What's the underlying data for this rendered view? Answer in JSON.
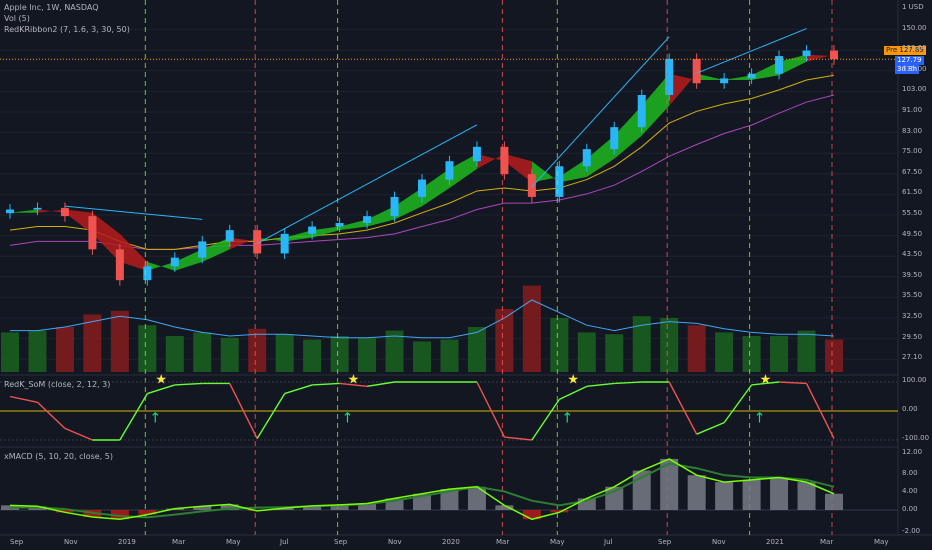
{
  "header": {
    "main_label": "Apple Inc, 1W, NASDAQ",
    "vol_label": "Vol (5)",
    "ribbon_label": "RedKRibbon2 (7, 1.6, 3, 30, 50)",
    "som_label": "RedK_SoM (close, 2, 12, 3)",
    "xmacd_label": "xMACD (5, 10, 20, close, 5)"
  },
  "price_tags": {
    "pre_label": "Pre",
    "pre_value": "127.89",
    "close_value": "127.79",
    "countdown": "3d 8h"
  },
  "axes": {
    "price_ticks": [
      "1 USD",
      "150.00",
      "133.00",
      "115.00",
      "103.00",
      "91.00",
      "83.00",
      "75.00",
      "67.50",
      "61.50",
      "55.50",
      "49.50",
      "43.50",
      "39.50",
      "35.50",
      "32.50",
      "29.50",
      "27.10"
    ],
    "som_ticks": [
      "100.00",
      "0.00",
      "-100.00"
    ],
    "macd_ticks": [
      "12.00",
      "8.00",
      "4.00",
      "0.00",
      "-2.00"
    ],
    "time_ticks": [
      "Sep",
      "Nov",
      "2019",
      "Mar",
      "May",
      "Jul",
      "Sep",
      "Nov",
      "2020",
      "Mar",
      "May",
      "Jul",
      "Sep",
      "Nov",
      "2021",
      "Mar",
      "May"
    ]
  },
  "colors": {
    "up": "#26a69a",
    "down": "#ef5350",
    "ribbon_up": "#1fb81f",
    "ribbon_down": "#b71c1c",
    "green_line": "#4caf50",
    "red_line": "#ef5350",
    "accent_cyan": "#29b6f6",
    "orange": "#ff9800"
  },
  "chart_data": [
    {
      "type": "candlestick",
      "x": [
        "2018-08",
        "2018-09",
        "2018-10",
        "2018-11",
        "2018-12",
        "2019-01",
        "2019-02",
        "2019-03",
        "2019-04",
        "2019-05",
        "2019-06",
        "2019-07",
        "2019-08",
        "2019-09",
        "2019-10",
        "2019-11",
        "2019-12",
        "2020-01",
        "2020-02",
        "2020-03",
        "2020-04",
        "2020-05",
        "2020-06",
        "2020-07",
        "2020-08",
        "2020-09",
        "2020-10",
        "2020-11",
        "2020-12",
        "2021-01",
        "2021-02"
      ],
      "close": [
        56,
        56.5,
        54,
        45,
        38,
        41,
        43,
        47,
        50,
        44,
        49,
        51,
        52,
        54,
        60,
        66,
        73,
        79,
        68,
        60,
        71,
        78,
        88,
        105,
        128,
        112,
        115,
        118,
        130,
        134,
        127.79
      ],
      "ribbon_close": [
        55,
        56,
        55,
        49,
        42,
        40,
        42,
        45,
        48,
        47,
        48,
        50,
        51,
        53,
        57,
        63,
        70,
        76,
        73,
        65,
        67,
        74,
        84,
        99,
        118,
        114,
        114,
        117,
        126,
        131,
        130
      ],
      "ma_slow": [
        50,
        51,
        51,
        50,
        47,
        45,
        45,
        46,
        47,
        47,
        48,
        48.5,
        49,
        50,
        52,
        55,
        58,
        62,
        63,
        62,
        63,
        66,
        71,
        79,
        90,
        96,
        100,
        103,
        108,
        114,
        117
      ],
      "ma_long": [
        46,
        47,
        47,
        47,
        46,
        45,
        45,
        45.5,
        46,
        46,
        46.5,
        47,
        47.5,
        48,
        49,
        51,
        53,
        56,
        58,
        58,
        59,
        61,
        64,
        69,
        75,
        80,
        85,
        89,
        95,
        101,
        105
      ],
      "volume": [
        22,
        23,
        25,
        32,
        34,
        26,
        20,
        22,
        19,
        24,
        21,
        18,
        20,
        19,
        23,
        17,
        18,
        25,
        35,
        48,
        30,
        22,
        21,
        31,
        30,
        26,
        22,
        20,
        20,
        23,
        18
      ],
      "volume_ma": [
        23,
        23,
        25,
        28,
        31,
        29,
        25,
        22,
        20,
        21,
        21,
        20,
        19,
        19,
        20,
        19,
        19,
        22,
        30,
        40,
        33,
        26,
        23,
        26,
        28,
        27,
        24,
        22,
        21,
        21,
        20
      ]
    },
    {
      "type": "line",
      "name": "RedK_SoM",
      "x": [
        "2018-08",
        "2018-09",
        "2018-10",
        "2018-11",
        "2018-12",
        "2019-01",
        "2019-02",
        "2019-03",
        "2019-04",
        "2019-05",
        "2019-06",
        "2019-07",
        "2019-08",
        "2019-09",
        "2019-10",
        "2019-11",
        "2019-12",
        "2020-01",
        "2020-02",
        "2020-03",
        "2020-04",
        "2020-05",
        "2020-06",
        "2020-07",
        "2020-08",
        "2020-09",
        "2020-10",
        "2020-11",
        "2020-12",
        "2021-01",
        "2021-02"
      ],
      "values": [
        50,
        30,
        -60,
        -100,
        -100,
        60,
        90,
        95,
        95,
        -95,
        60,
        90,
        95,
        85,
        100,
        100,
        100,
        100,
        -90,
        -100,
        40,
        85,
        95,
        100,
        100,
        -80,
        -40,
        90,
        100,
        95,
        -95
      ],
      "ylim": [
        -100,
        100
      ]
    },
    {
      "type": "bar",
      "name": "xMACD",
      "x": [
        "2018-08",
        "2018-09",
        "2018-10",
        "2018-11",
        "2018-12",
        "2019-01",
        "2019-02",
        "2019-03",
        "2019-04",
        "2019-05",
        "2019-06",
        "2019-07",
        "2019-08",
        "2019-09",
        "2019-10",
        "2019-11",
        "2019-12",
        "2020-01",
        "2020-02",
        "2020-03",
        "2020-04",
        "2020-05",
        "2020-06",
        "2020-07",
        "2020-08",
        "2020-09",
        "2020-10",
        "2020-11",
        "2020-12",
        "2021-01",
        "2021-02"
      ],
      "values": [
        1.0,
        0.8,
        -0.5,
        -1.5,
        -2.0,
        -1.0,
        0.3,
        0.8,
        1.2,
        -0.2,
        0.4,
        0.9,
        1.1,
        1.4,
        2.5,
        3.5,
        4.5,
        5.0,
        1.0,
        -2.0,
        -0.5,
        2.5,
        5.0,
        8.5,
        11.0,
        7.5,
        6.0,
        6.5,
        7.0,
        6.0,
        3.5
      ],
      "signal": [
        0.5,
        0.6,
        0.2,
        -0.6,
        -1.3,
        -1.6,
        -1.0,
        -0.3,
        0.3,
        0.5,
        0.6,
        0.8,
        1.0,
        1.3,
        2.0,
        3.0,
        4.0,
        5.0,
        4.0,
        2.0,
        1.0,
        2.0,
        4.0,
        7.0,
        10.0,
        9.0,
        7.5,
        7.0,
        7.0,
        6.5,
        5.0
      ],
      "ylim": [
        -2,
        12
      ]
    }
  ]
}
